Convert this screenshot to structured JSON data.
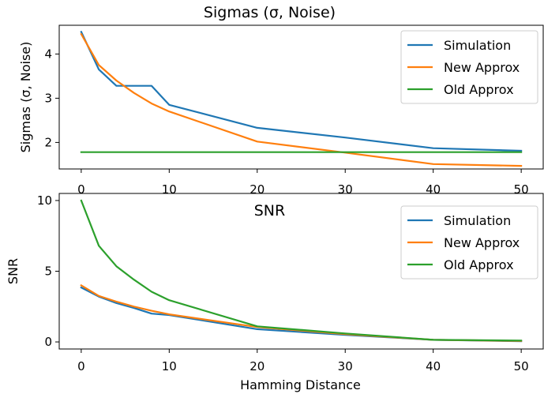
{
  "colors": {
    "simulation": "#1f77b4",
    "new_approx": "#ff7f0e",
    "old_approx": "#2ca02c"
  },
  "chart_data": [
    {
      "type": "line",
      "title": "Sigmas (σ, Noise)",
      "xlabel": "",
      "ylabel": "Sigmas (σ, Noise)",
      "xlim": [
        -2.5,
        52.5
      ],
      "ylim": [
        1.4,
        4.65
      ],
      "xticks": [
        0,
        10,
        20,
        30,
        40,
        50
      ],
      "yticks": [
        2,
        3,
        4
      ],
      "legend": "upper-right",
      "grid": false,
      "series": [
        {
          "name": "Simulation",
          "color_key": "simulation",
          "x": [
            0,
            2,
            4,
            6,
            8,
            10,
            20,
            30,
            40,
            50
          ],
          "y": [
            4.5,
            3.65,
            3.28,
            3.28,
            3.28,
            2.85,
            2.33,
            2.11,
            1.87,
            1.81
          ]
        },
        {
          "name": "New Approx",
          "color_key": "new_approx",
          "x": [
            0,
            2,
            4,
            6,
            8,
            10,
            20,
            30,
            40,
            50
          ],
          "y": [
            4.45,
            3.75,
            3.4,
            3.12,
            2.88,
            2.7,
            2.02,
            1.77,
            1.51,
            1.47
          ]
        },
        {
          "name": "Old Approx",
          "color_key": "old_approx",
          "x": [
            0,
            50
          ],
          "y": [
            1.78,
            1.78
          ]
        }
      ]
    },
    {
      "type": "line",
      "title": "SNR",
      "xlabel": "Hamming Distance",
      "ylabel": "SNR",
      "xlim": [
        -2.5,
        52.5
      ],
      "ylim": [
        -0.5,
        10.5
      ],
      "xticks": [
        0,
        10,
        20,
        30,
        40,
        50
      ],
      "yticks": [
        0,
        5,
        10
      ],
      "legend": "upper-right",
      "grid": false,
      "series": [
        {
          "name": "Simulation",
          "color_key": "simulation",
          "x": [
            0,
            2,
            4,
            6,
            8,
            10,
            20,
            30,
            40,
            50
          ],
          "y": [
            3.85,
            3.2,
            2.75,
            2.4,
            2.0,
            1.9,
            0.9,
            0.5,
            0.15,
            0.05
          ]
        },
        {
          "name": "New Approx",
          "color_key": "new_approx",
          "x": [
            0,
            2,
            4,
            6,
            8,
            10,
            20,
            30,
            40,
            50
          ],
          "y": [
            4.0,
            3.25,
            2.85,
            2.5,
            2.2,
            1.95,
            1.05,
            0.55,
            0.15,
            0.07
          ]
        },
        {
          "name": "Old Approx",
          "color_key": "old_approx",
          "x": [
            0,
            2,
            4,
            6,
            8,
            10,
            20,
            30,
            40,
            50
          ],
          "y": [
            10.0,
            6.8,
            5.35,
            4.4,
            3.55,
            2.95,
            1.1,
            0.6,
            0.15,
            0.1
          ]
        }
      ]
    }
  ]
}
